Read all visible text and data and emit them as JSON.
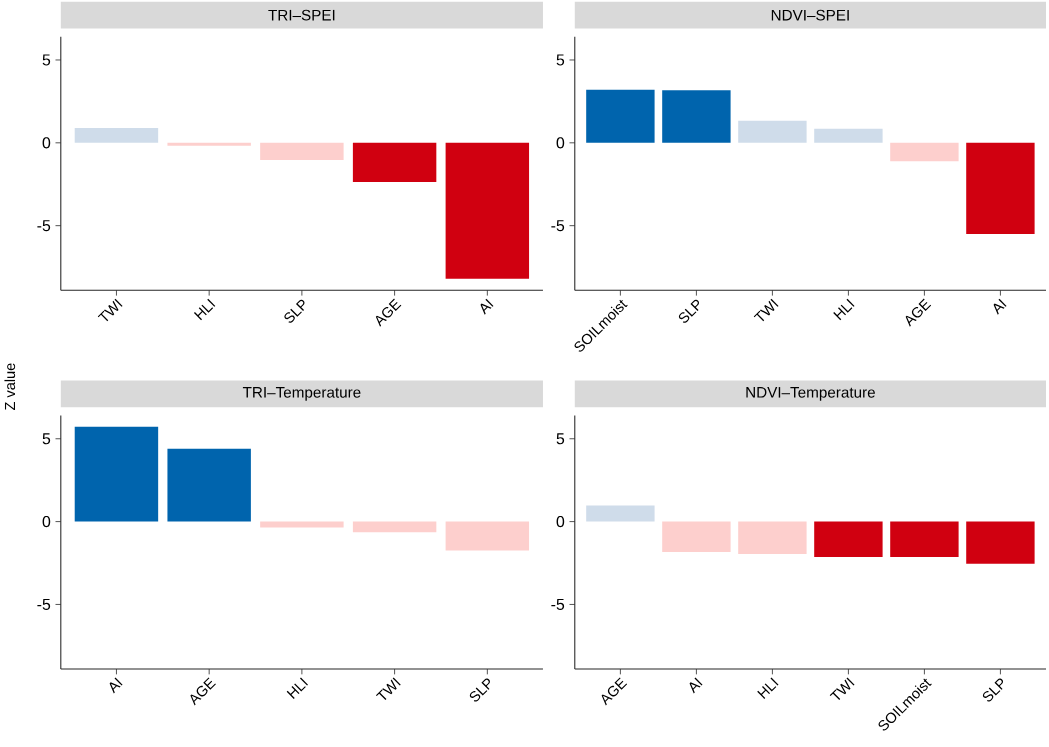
{
  "chart_data": [
    {
      "type": "bar",
      "title": "TRI–SPEI",
      "ylabel": "Z value",
      "categories": [
        "TWI",
        "HLI",
        "SLP",
        "AGE",
        "AI"
      ],
      "values": [
        0.9,
        -0.17,
        -1.03,
        -2.37,
        -8.2
      ],
      "colors": [
        "#cfdcea",
        "#fdcfcd",
        "#fdcfcd",
        "#d00010",
        "#d00010"
      ],
      "ylim": [
        -8.9,
        6.4
      ],
      "yticks": [
        -5,
        0,
        5
      ],
      "grid": false
    },
    {
      "type": "bar",
      "title": "NDVI–SPEI",
      "categories": [
        "SOILmoist",
        "SLP",
        "TWI",
        "HLI",
        "AGE",
        "AI"
      ],
      "values": [
        3.2,
        3.17,
        1.33,
        0.85,
        -1.11,
        -5.5
      ],
      "colors": [
        "#0064ad",
        "#0064ad",
        "#cfdcea",
        "#cfdcea",
        "#fdcfcd",
        "#d00010"
      ],
      "ylim": [
        -8.9,
        6.4
      ],
      "yticks": [
        -5,
        0,
        5
      ],
      "grid": false
    },
    {
      "type": "bar",
      "title": "TRI–Temperature",
      "categories": [
        "AI",
        "AGE",
        "HLI",
        "TWI",
        "SLP"
      ],
      "values": [
        5.72,
        4.4,
        -0.35,
        -0.64,
        -1.74
      ],
      "colors": [
        "#0064ad",
        "#0064ad",
        "#fdcfcd",
        "#fdcfcd",
        "#fdcfcd"
      ],
      "ylim": [
        -8.9,
        6.4
      ],
      "yticks": [
        -5,
        0,
        5
      ],
      "grid": false
    },
    {
      "type": "bar",
      "title": "NDVI–Temperature",
      "categories": [
        "AGE",
        "AI",
        "HLI",
        "TWI",
        "SOILmoist",
        "SLP"
      ],
      "values": [
        0.97,
        -1.83,
        -1.95,
        -2.13,
        -2.13,
        -2.54
      ],
      "colors": [
        "#cfdcea",
        "#fdcfcd",
        "#fdcfcd",
        "#d00010",
        "#d00010",
        "#d00010"
      ],
      "ylim": [
        -8.9,
        6.4
      ],
      "yticks": [
        -5,
        0,
        5
      ],
      "grid": false
    }
  ]
}
